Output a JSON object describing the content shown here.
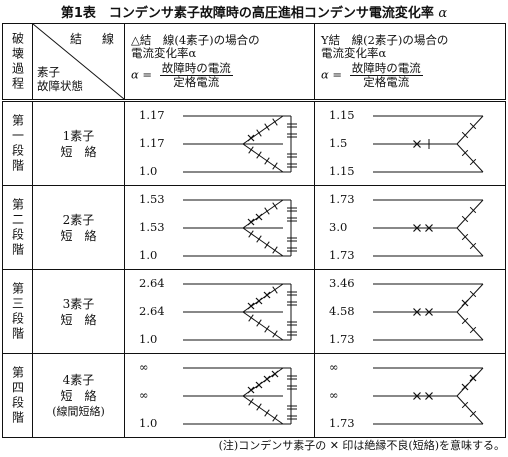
{
  "title": "第1表　コンデンサ素子故障時の高圧進相コンデンサ電流変化率",
  "title_alpha": "α",
  "header": {
    "stage_col": "破壊過程",
    "connection_label": "結　線",
    "fault_label_line1": "素子",
    "fault_label_line2": "故障状態",
    "delta": {
      "line1": "△結　線(4素子)の場合の",
      "line2": "電流変化率α",
      "lhs": "α =",
      "num": "故障時の電流",
      "den": "定格電流"
    },
    "wye": {
      "line1": "Y結　線(2素子)の場合の",
      "line2": "電流変化率α",
      "lhs": "α =",
      "num": "故障時の電流",
      "den": "定格電流"
    }
  },
  "rows": [
    {
      "stage": "第一段階",
      "fault1": "1素子",
      "fault2": "短　絡",
      "fault3": "",
      "delta_values": [
        "1.17",
        "1.17",
        "1.0"
      ],
      "wye_values": [
        "1.15",
        "1.5",
        "1.15"
      ]
    },
    {
      "stage": "第二段階",
      "fault1": "2素子",
      "fault2": "短　絡",
      "fault3": "",
      "delta_values": [
        "1.53",
        "1.53",
        "1.0"
      ],
      "wye_values": [
        "1.73",
        "3.0",
        "1.73"
      ]
    },
    {
      "stage": "第三段階",
      "fault1": "3素子",
      "fault2": "短　絡",
      "fault3": "",
      "delta_values": [
        "2.64",
        "2.64",
        "1.0"
      ],
      "wye_values": [
        "3.46",
        "4.58",
        "1.73"
      ]
    },
    {
      "stage": "第四段階",
      "fault1": "4素子",
      "fault2": "短　絡",
      "fault3": "(線間短絡)",
      "delta_values": [
        "∞",
        "∞",
        "1.0"
      ],
      "wye_values": [
        "∞",
        "∞",
        "1.73"
      ]
    }
  ],
  "note": "(注)コンデンサ素子の ✕ 印は絶縁不良(短絡)を意味する。"
}
